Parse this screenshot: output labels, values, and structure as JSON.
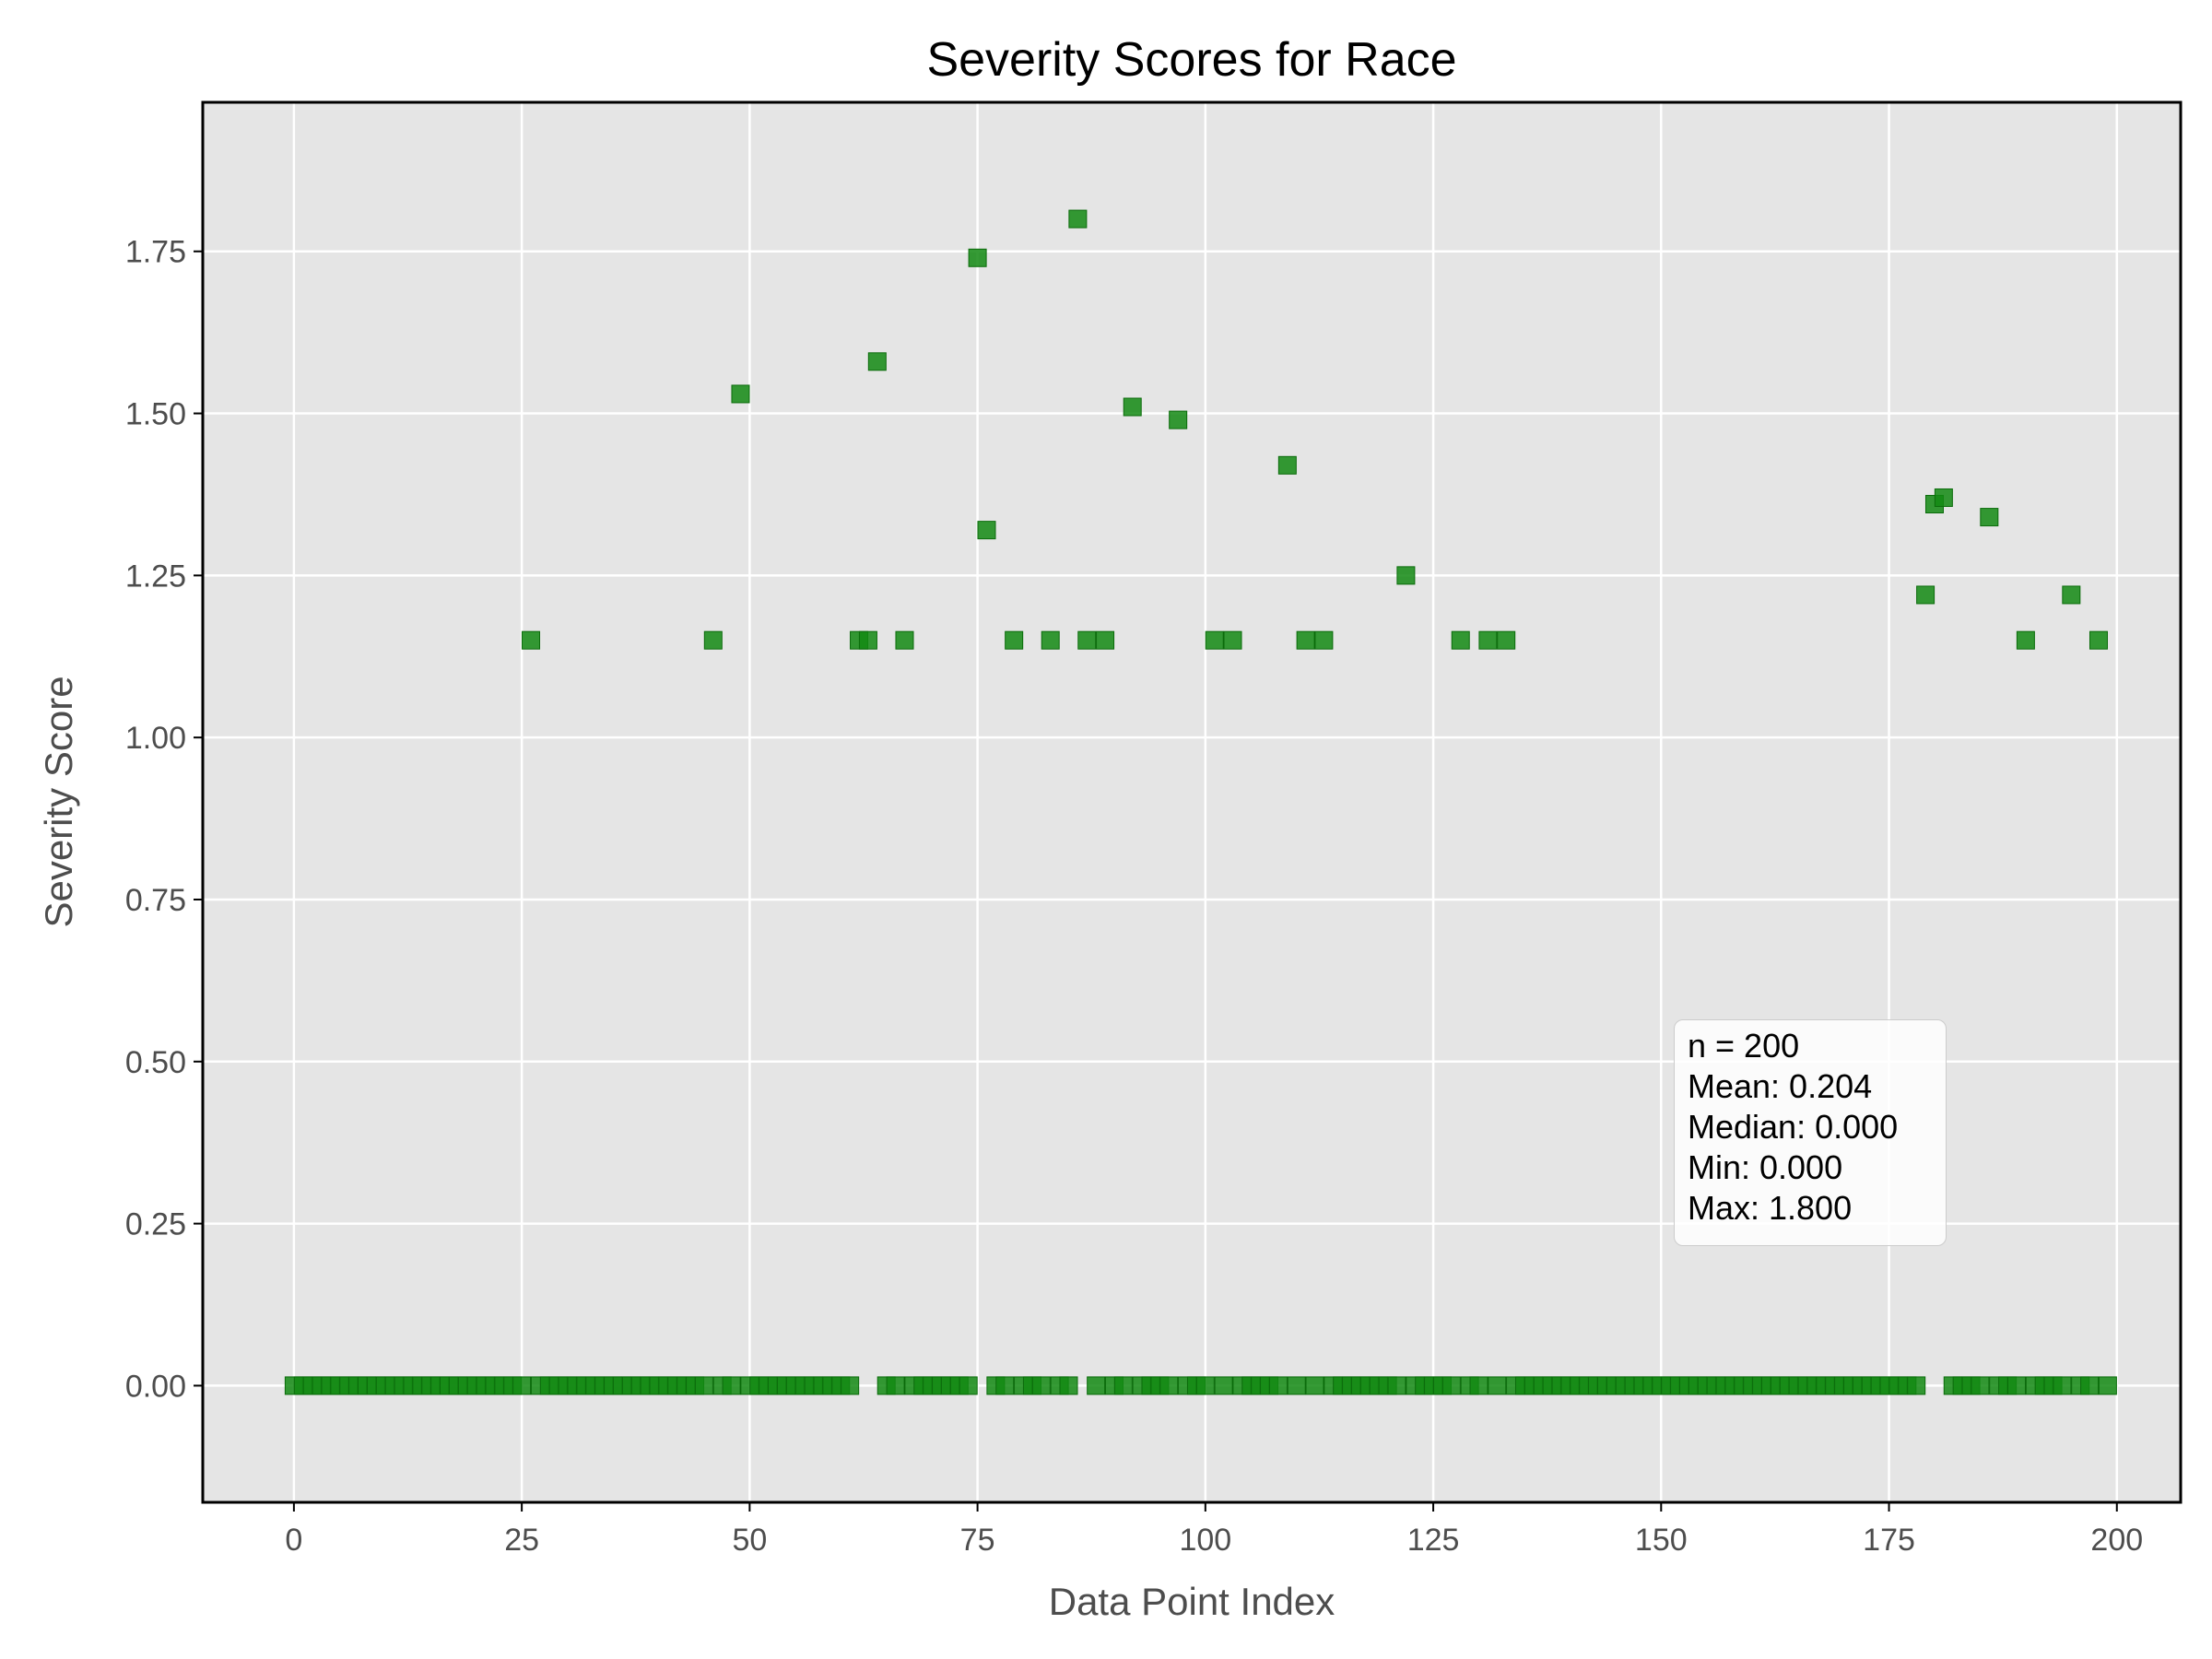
{
  "chart_data": {
    "type": "scatter",
    "title": "Severity Scores for Race",
    "xlabel": "Data Point Index",
    "ylabel": "Severity Score",
    "xlim": [
      -10,
      207
    ],
    "ylim": [
      -0.18,
      1.98
    ],
    "x_ticks": [
      0,
      25,
      50,
      75,
      100,
      125,
      150,
      175,
      200
    ],
    "x_tick_labels": [
      "0",
      "25",
      "50",
      "75",
      "100",
      "125",
      "150",
      "175",
      "200"
    ],
    "y_ticks": [
      0.0,
      0.25,
      0.5,
      0.75,
      1.0,
      1.25,
      1.5,
      1.75
    ],
    "y_tick_labels": [
      "0.00",
      "0.25",
      "0.50",
      "0.75",
      "1.00",
      "1.25",
      "1.50",
      "1.75"
    ],
    "grid": true,
    "marker": "square",
    "colors": {
      "marker": "#138a13",
      "plot_background": "#e5e5e5",
      "grid": "#ffffff",
      "frame": "#000000"
    },
    "points": [
      {
        "x": 26,
        "y": 1.15
      },
      {
        "x": 46,
        "y": 1.15
      },
      {
        "x": 49,
        "y": 1.53
      },
      {
        "x": 62,
        "y": 1.15
      },
      {
        "x": 63,
        "y": 1.15
      },
      {
        "x": 64,
        "y": 1.58
      },
      {
        "x": 67,
        "y": 1.15
      },
      {
        "x": 75,
        "y": 1.74
      },
      {
        "x": 76,
        "y": 1.32
      },
      {
        "x": 79,
        "y": 1.15
      },
      {
        "x": 83,
        "y": 1.15
      },
      {
        "x": 86,
        "y": 1.8
      },
      {
        "x": 87,
        "y": 1.15
      },
      {
        "x": 89,
        "y": 1.15
      },
      {
        "x": 92,
        "y": 1.51
      },
      {
        "x": 97,
        "y": 1.49
      },
      {
        "x": 101,
        "y": 1.15
      },
      {
        "x": 103,
        "y": 1.15
      },
      {
        "x": 109,
        "y": 1.42
      },
      {
        "x": 111,
        "y": 1.15
      },
      {
        "x": 113,
        "y": 1.15
      },
      {
        "x": 122,
        "y": 1.25
      },
      {
        "x": 128,
        "y": 1.15
      },
      {
        "x": 131,
        "y": 1.15
      },
      {
        "x": 133,
        "y": 1.15
      },
      {
        "x": 179,
        "y": 1.22
      },
      {
        "x": 180,
        "y": 1.36
      },
      {
        "x": 181,
        "y": 1.37
      },
      {
        "x": 186,
        "y": 1.34
      },
      {
        "x": 190,
        "y": 1.15
      },
      {
        "x": 195,
        "y": 1.22
      },
      {
        "x": 198,
        "y": 1.15
      }
    ],
    "zero_points_x_range": [
      0,
      199
    ],
    "zero_value": 0.0,
    "stats": [
      "n = 200",
      "Mean: 0.204",
      "Median: 0.000",
      "Min: 0.000",
      "Max: 1.800"
    ]
  }
}
